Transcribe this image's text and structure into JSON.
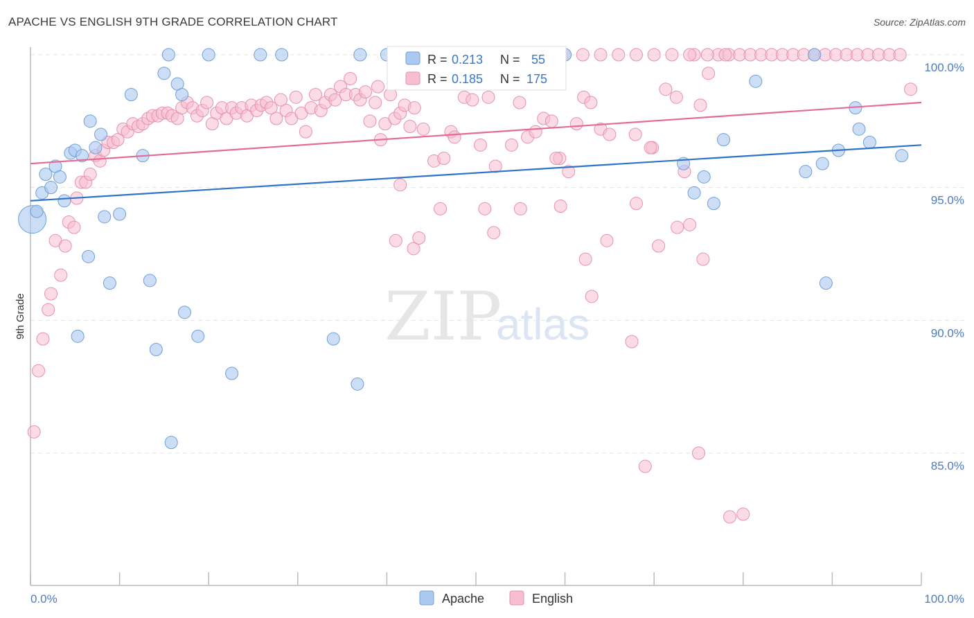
{
  "title": "APACHE VS ENGLISH 9TH GRADE CORRELATION CHART",
  "source": "Source: ZipAtlas.com",
  "watermark": {
    "zip": "ZIP",
    "atlas": "atlas"
  },
  "legend": {
    "apache": {
      "r_label": "R =",
      "r_value": "0.213",
      "n_label": "N =",
      "n_value": "55"
    },
    "english": {
      "r_label": "R =",
      "r_value": "0.185",
      "n_label": "N =",
      "n_value": "175"
    }
  },
  "colors": {
    "apache_fill": "#aac8f0",
    "apache_stroke": "#6f9fd8",
    "apache_line": "#2f72c9",
    "english_fill": "#f7bdd0",
    "english_stroke": "#e691ae",
    "english_line": "#e46a97",
    "grid": "#e3e3e3",
    "axis": "#bbbbbb"
  },
  "chart_data": {
    "type": "scatter",
    "title": "APACHE VS ENGLISH 9TH GRADE CORRELATION CHART",
    "xlabel": "",
    "ylabel": "9th Grade",
    "xlim": [
      0,
      100
    ],
    "ylim": [
      80.5,
      100.8
    ],
    "x_tick_labels": [
      "0.0%",
      "100.0%"
    ],
    "y_ticks": [
      85,
      90,
      95,
      100
    ],
    "y_tick_labels": [
      "85.0%",
      "90.0%",
      "95.0%",
      "100.0%"
    ],
    "grid": "horizontal dashed",
    "legend_position": "top-center and bottom",
    "series": [
      {
        "name": "Apache",
        "R": 0.213,
        "N": 55,
        "trend": {
          "x": [
            0,
            100
          ],
          "y": [
            94.5,
            96.6
          ]
        },
        "points": [
          [
            0.2,
            93.8
          ],
          [
            0.7,
            94.1
          ],
          [
            1.3,
            94.8
          ],
          [
            1.7,
            95.5
          ],
          [
            2.3,
            95.0
          ],
          [
            2.8,
            95.8
          ],
          [
            3.3,
            95.4
          ],
          [
            3.8,
            94.5
          ],
          [
            4.5,
            96.3
          ],
          [
            5.0,
            96.4
          ],
          [
            5.8,
            96.2
          ],
          [
            6.7,
            97.5
          ],
          [
            7.3,
            96.5
          ],
          [
            7.9,
            97.0
          ],
          [
            8.3,
            93.9
          ],
          [
            8.9,
            91.4
          ],
          [
            10.0,
            94.0
          ],
          [
            11.3,
            98.5
          ],
          [
            12.6,
            96.2
          ],
          [
            13.4,
            91.5
          ],
          [
            14.1,
            88.9
          ],
          [
            15.0,
            99.3
          ],
          [
            15.5,
            100.0
          ],
          [
            15.8,
            85.4
          ],
          [
            16.5,
            98.9
          ],
          [
            17.0,
            98.5
          ],
          [
            17.3,
            90.3
          ],
          [
            18.8,
            89.4
          ],
          [
            20.0,
            100.0
          ],
          [
            22.6,
            88.0
          ],
          [
            25.8,
            100.0
          ],
          [
            28.2,
            100.0
          ],
          [
            34.0,
            89.3
          ],
          [
            36.7,
            87.6
          ],
          [
            37.0,
            100.0
          ],
          [
            42.5,
            100.0
          ],
          [
            5.3,
            89.4
          ],
          [
            6.5,
            92.4
          ],
          [
            40.0,
            100.0
          ],
          [
            60.0,
            100.0
          ],
          [
            73.3,
            95.9
          ],
          [
            74.5,
            94.8
          ],
          [
            75.6,
            95.4
          ],
          [
            76.7,
            94.4
          ],
          [
            77.8,
            96.8
          ],
          [
            81.4,
            99.0
          ],
          [
            87.0,
            95.6
          ],
          [
            88.0,
            100.0
          ],
          [
            88.9,
            95.9
          ],
          [
            89.3,
            91.4
          ],
          [
            90.7,
            96.4
          ],
          [
            92.6,
            98.0
          ],
          [
            93.0,
            97.2
          ],
          [
            94.2,
            96.7
          ],
          [
            97.8,
            96.2
          ]
        ]
      },
      {
        "name": "English",
        "R": 0.185,
        "N": 175,
        "trend": {
          "x": [
            0,
            100
          ],
          "y": [
            95.9,
            98.2
          ]
        },
        "points": [
          [
            0.4,
            85.8
          ],
          [
            0.9,
            88.1
          ],
          [
            1.4,
            89.3
          ],
          [
            2.0,
            90.4
          ],
          [
            2.3,
            91.0
          ],
          [
            2.8,
            93.0
          ],
          [
            3.4,
            91.7
          ],
          [
            3.9,
            92.8
          ],
          [
            4.3,
            93.7
          ],
          [
            4.9,
            93.5
          ],
          [
            5.2,
            94.6
          ],
          [
            5.7,
            95.2
          ],
          [
            6.2,
            95.2
          ],
          [
            6.7,
            95.5
          ],
          [
            7.3,
            96.2
          ],
          [
            7.8,
            96.0
          ],
          [
            8.2,
            96.4
          ],
          [
            8.7,
            96.7
          ],
          [
            9.3,
            96.7
          ],
          [
            9.8,
            96.8
          ],
          [
            10.4,
            97.2
          ],
          [
            10.9,
            97.1
          ],
          [
            11.5,
            97.4
          ],
          [
            12.1,
            97.3
          ],
          [
            12.6,
            97.4
          ],
          [
            13.2,
            97.6
          ],
          [
            13.7,
            97.7
          ],
          [
            14.3,
            97.7
          ],
          [
            14.8,
            97.8
          ],
          [
            15.4,
            97.8
          ],
          [
            15.9,
            97.7
          ],
          [
            16.5,
            97.6
          ],
          [
            17.0,
            98.0
          ],
          [
            17.6,
            98.2
          ],
          [
            18.2,
            98.0
          ],
          [
            18.7,
            97.7
          ],
          [
            19.3,
            97.9
          ],
          [
            19.8,
            98.2
          ],
          [
            20.4,
            97.4
          ],
          [
            20.9,
            97.8
          ],
          [
            21.5,
            98.0
          ],
          [
            22.0,
            97.6
          ],
          [
            22.6,
            98.0
          ],
          [
            23.1,
            97.8
          ],
          [
            23.7,
            98.0
          ],
          [
            24.3,
            97.7
          ],
          [
            24.8,
            98.1
          ],
          [
            25.4,
            97.9
          ],
          [
            25.9,
            98.1
          ],
          [
            26.5,
            98.2
          ],
          [
            27.0,
            98.0
          ],
          [
            27.6,
            97.6
          ],
          [
            28.1,
            98.3
          ],
          [
            28.7,
            97.9
          ],
          [
            29.3,
            97.6
          ],
          [
            29.8,
            98.4
          ],
          [
            30.4,
            97.8
          ],
          [
            30.9,
            97.1
          ],
          [
            31.5,
            98.0
          ],
          [
            32.0,
            98.5
          ],
          [
            32.6,
            97.9
          ],
          [
            33.1,
            98.2
          ],
          [
            33.7,
            98.5
          ],
          [
            34.2,
            98.3
          ],
          [
            34.8,
            98.8
          ],
          [
            35.4,
            98.5
          ],
          [
            35.9,
            99.1
          ],
          [
            36.5,
            98.5
          ],
          [
            37.0,
            98.3
          ],
          [
            37.6,
            98.6
          ],
          [
            38.1,
            97.5
          ],
          [
            38.7,
            98.2
          ],
          [
            39.3,
            96.8
          ],
          [
            39.8,
            97.4
          ],
          [
            40.4,
            98.5
          ],
          [
            40.9,
            97.6
          ],
          [
            41.5,
            97.8
          ],
          [
            42.0,
            98.1
          ],
          [
            42.6,
            97.3
          ],
          [
            43.1,
            98.0
          ],
          [
            44.1,
            97.2
          ],
          [
            45.3,
            96.0
          ],
          [
            46.4,
            96.1
          ],
          [
            47.2,
            97.1
          ],
          [
            47.6,
            96.9
          ],
          [
            48.7,
            98.4
          ],
          [
            49.6,
            98.3
          ],
          [
            50.5,
            96.6
          ],
          [
            51.4,
            98.4
          ],
          [
            52.2,
            95.8
          ],
          [
            53.1,
            99.3
          ],
          [
            54.0,
            96.6
          ],
          [
            54.9,
            98.2
          ],
          [
            55.8,
            96.9
          ],
          [
            56.7,
            97.1
          ],
          [
            57.6,
            97.6
          ],
          [
            58.5,
            97.5
          ],
          [
            59.4,
            96.1
          ],
          [
            60.4,
            95.6
          ],
          [
            61.3,
            97.4
          ],
          [
            62.1,
            98.4
          ],
          [
            62.9,
            98.2
          ],
          [
            64.0,
            97.2
          ],
          [
            65.0,
            97.0
          ],
          [
            67.9,
            97.0
          ],
          [
            69.8,
            96.5
          ],
          [
            71.3,
            98.7
          ],
          [
            72.5,
            98.4
          ],
          [
            74.5,
            100.0
          ],
          [
            75.2,
            98.1
          ],
          [
            76.1,
            99.3
          ],
          [
            77.2,
            100.0
          ],
          [
            78.4,
            100.0
          ],
          [
            79.6,
            100.0
          ],
          [
            80.8,
            100.0
          ],
          [
            82.0,
            100.0
          ],
          [
            83.2,
            100.0
          ],
          [
            84.4,
            100.0
          ],
          [
            85.6,
            100.0
          ],
          [
            86.8,
            100.0
          ],
          [
            88.0,
            100.0
          ],
          [
            89.2,
            100.0
          ],
          [
            90.4,
            100.0
          ],
          [
            91.6,
            100.0
          ],
          [
            92.8,
            100.0
          ],
          [
            94.0,
            100.0
          ],
          [
            95.2,
            100.0
          ],
          [
            96.4,
            100.0
          ],
          [
            97.6,
            100.0
          ],
          [
            98.8,
            98.7
          ],
          [
            50.0,
            100.0
          ],
          [
            52.0,
            100.0
          ],
          [
            54.0,
            100.0
          ],
          [
            56.0,
            100.0
          ],
          [
            58.0,
            100.0
          ],
          [
            60.0,
            100.0
          ],
          [
            62.0,
            100.0
          ],
          [
            64.0,
            100.0
          ],
          [
            66.0,
            100.0
          ],
          [
            68.0,
            100.0
          ],
          [
            70.0,
            100.0
          ],
          [
            72.0,
            100.0
          ],
          [
            74.0,
            100.0
          ],
          [
            76.0,
            100.0
          ],
          [
            78.0,
            100.0
          ],
          [
            43.0,
            92.7
          ],
          [
            41.5,
            95.1
          ],
          [
            41.0,
            93.0
          ],
          [
            51.0,
            94.2
          ],
          [
            46.0,
            94.2
          ],
          [
            55.0,
            94.2
          ],
          [
            52.0,
            93.3
          ],
          [
            59.0,
            96.1
          ],
          [
            62.3,
            92.3
          ],
          [
            64.7,
            93.0
          ],
          [
            63.0,
            90.9
          ],
          [
            68.0,
            94.4
          ],
          [
            70.5,
            92.8
          ],
          [
            74.0,
            93.6
          ],
          [
            75.5,
            92.3
          ],
          [
            67.5,
            89.2
          ],
          [
            69.0,
            84.5
          ],
          [
            75.0,
            85.0
          ],
          [
            78.5,
            82.6
          ],
          [
            80.0,
            82.7
          ],
          [
            69.6,
            96.5
          ],
          [
            73.4,
            95.6
          ],
          [
            72.6,
            93.5
          ],
          [
            59.5,
            94.3
          ],
          [
            43.6,
            93.1
          ],
          [
            41.0,
            99.5
          ],
          [
            39.0,
            98.8
          ],
          [
            45.7,
            99.0
          ],
          [
            55.5,
            99.8
          ],
          [
            57.0,
            100.0
          ]
        ]
      }
    ]
  },
  "bottom_legend": [
    "Apache",
    "English"
  ]
}
